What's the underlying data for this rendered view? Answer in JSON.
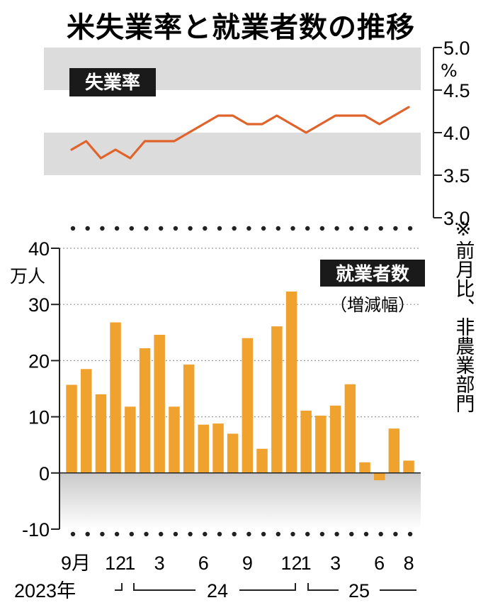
{
  "chart_data": [
    {
      "type": "line",
      "title": "米失業率と就業者数の推移",
      "label": "失業率",
      "unit": "%",
      "color": "#e0632b",
      "ylim": [
        3.0,
        5.0
      ],
      "yticks": [
        "5.0",
        "4.5",
        "4.0",
        "3.5",
        "3.0"
      ],
      "bands": [
        [
          4.5,
          5.0
        ],
        [
          3.5,
          4.0
        ]
      ],
      "x": [
        "2023-09",
        "2023-10",
        "2023-11",
        "2023-12",
        "2024-01",
        "2024-02",
        "2024-03",
        "2024-04",
        "2024-05",
        "2024-06",
        "2024-07",
        "2024-08",
        "2024-09",
        "2024-10",
        "2024-11",
        "2024-12",
        "2025-01",
        "2025-02",
        "2025-03",
        "2025-04",
        "2025-05",
        "2025-06",
        "2025-07",
        "2025-08"
      ],
      "values": [
        3.8,
        3.9,
        3.7,
        3.8,
        3.7,
        3.9,
        3.9,
        3.9,
        4.0,
        4.1,
        4.2,
        4.2,
        4.1,
        4.1,
        4.2,
        4.1,
        4.0,
        4.1,
        4.2,
        4.2,
        4.2,
        4.1,
        4.2,
        4.3
      ]
    },
    {
      "type": "bar",
      "label": "就業者数",
      "sublabel": "（増減幅）",
      "unit": "万人",
      "color": "#f0a22e",
      "ylim": [
        -10,
        40
      ],
      "yticks": [
        "40",
        "30",
        "20",
        "10",
        "0",
        "-10"
      ],
      "x": [
        "2023-09",
        "2023-10",
        "2023-11",
        "2023-12",
        "2024-01",
        "2024-02",
        "2024-03",
        "2024-04",
        "2024-05",
        "2024-06",
        "2024-07",
        "2024-08",
        "2024-09",
        "2024-10",
        "2024-11",
        "2024-12",
        "2025-01",
        "2025-02",
        "2025-03",
        "2025-04",
        "2025-05",
        "2025-06",
        "2025-07",
        "2025-08"
      ],
      "values": [
        15.7,
        18.5,
        14.0,
        26.8,
        11.8,
        22.2,
        24.6,
        11.8,
        19.3,
        8.6,
        8.8,
        7.0,
        24.0,
        4.3,
        26.1,
        32.3,
        11.1,
        10.2,
        12.0,
        15.8,
        1.9,
        -1.3,
        7.9,
        2.2
      ],
      "note": "※前月比、非農業部門"
    }
  ],
  "x_axis": {
    "tick_labels": [
      "9月",
      "12",
      "1",
      "3",
      "6",
      "9",
      "12",
      "1",
      "3",
      "6",
      "8"
    ],
    "year_labels": [
      "2023年",
      "24",
      "25"
    ]
  }
}
